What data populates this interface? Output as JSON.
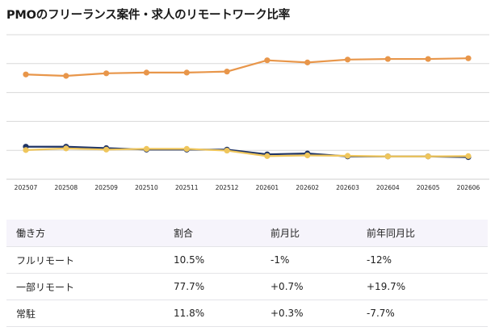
{
  "title": "PMOのフリーランス案件・求人のリモートワーク比率",
  "chart_data": {
    "type": "line",
    "x": [
      "202507",
      "202508",
      "202509",
      "202510",
      "202511",
      "202512",
      "202601",
      "202602",
      "202603",
      "202604",
      "202605",
      "202606"
    ],
    "ylim": [
      0,
      100
    ],
    "grid": true,
    "legend": "none",
    "series": [
      {
        "color": "#e8964a",
        "values": [
          72.5,
          71.5,
          73.3,
          73.8,
          73.8,
          74.5,
          82.3,
          80.8,
          82.8,
          83.2,
          83.2,
          83.7
        ]
      },
      {
        "color": "#1f3466",
        "values": [
          22.5,
          22.5,
          21.5,
          20.5,
          20.5,
          20.5,
          17.2,
          17.8,
          15.8,
          15.8,
          15.8,
          15.3
        ]
      },
      {
        "color": "#efc65c",
        "values": [
          20.2,
          21.3,
          20.5,
          21.0,
          21.0,
          19.8,
          16.0,
          16.5,
          16.2,
          15.8,
          15.8,
          16.0
        ]
      }
    ]
  },
  "table": {
    "headers": [
      "働き方",
      "割合",
      "前月比",
      "前年同月比"
    ],
    "rows": [
      [
        "フルリモート",
        "10.5%",
        "-1%",
        "-12%"
      ],
      [
        "一部リモート",
        "77.7%",
        "+0.7%",
        "+19.7%"
      ],
      [
        "常駐",
        "11.8%",
        "+0.3%",
        "-7.7%"
      ]
    ]
  }
}
